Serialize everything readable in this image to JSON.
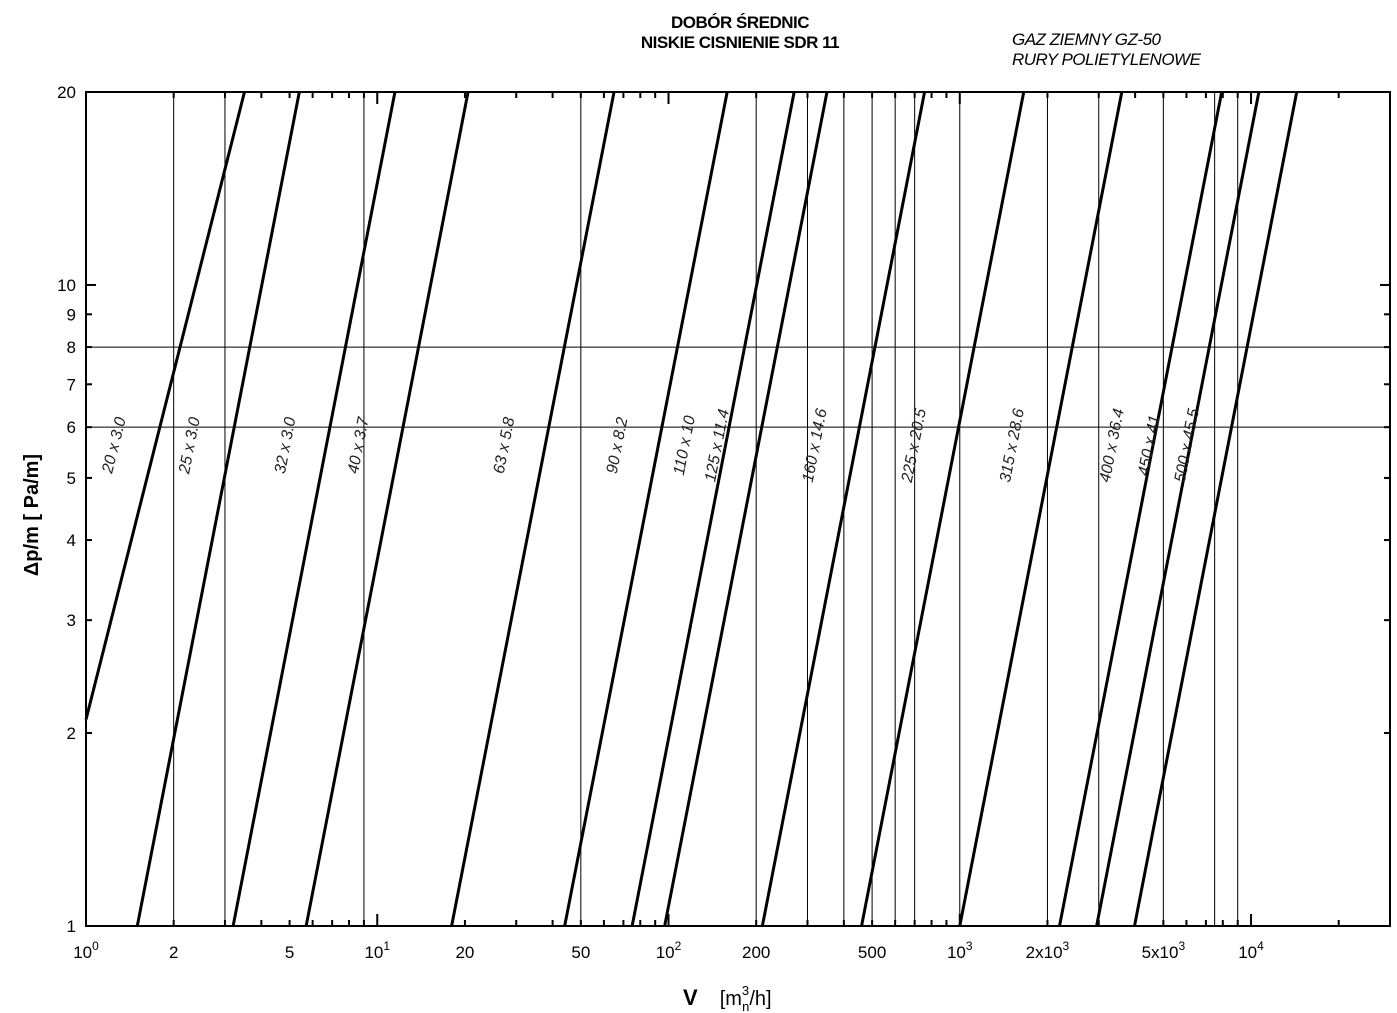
{
  "title_lines": [
    "DOBÓR ŚREDNIC",
    "NISKIE CISNIENIE SDR 11"
  ],
  "subtitle_lines": [
    "GAZ ZIEMNY GZ-50",
    "RURY POLIETYLENOWE"
  ],
  "chart_data": {
    "type": "line",
    "xscale": "log",
    "yscale": "log",
    "xlim": [
      1,
      30000
    ],
    "ylim": [
      1,
      20
    ],
    "xlabel_main": "V",
    "xlabel_unit": "[m",
    "xlabel_sup": "3",
    "xlabel_sub": "n",
    "xlabel_end": "/h]",
    "ylabel": "Δp/m   [ Pa/m]",
    "x_tick_labels": [
      {
        "v": 1,
        "base": "10",
        "exp": "0"
      },
      {
        "v": 2,
        "base": "2",
        "exp": ""
      },
      {
        "v": 5,
        "base": "5",
        "exp": ""
      },
      {
        "v": 10,
        "base": "10",
        "exp": "1"
      },
      {
        "v": 20,
        "base": "20",
        "exp": ""
      },
      {
        "v": 50,
        "base": "50",
        "exp": ""
      },
      {
        "v": 100,
        "base": "10",
        "exp": "2"
      },
      {
        "v": 200,
        "base": "200",
        "exp": ""
      },
      {
        "v": 500,
        "base": "500",
        "exp": ""
      },
      {
        "v": 1000,
        "base": "10",
        "exp": "3"
      },
      {
        "v": 2000,
        "base": "2x10",
        "exp": "3"
      },
      {
        "v": 5000,
        "base": "5x10",
        "exp": "3"
      },
      {
        "v": 10000,
        "base": "10",
        "exp": "4"
      }
    ],
    "y_tick_labels": [
      {
        "v": 1,
        "t": "1"
      },
      {
        "v": 2,
        "t": "2"
      },
      {
        "v": 3,
        "t": "3"
      },
      {
        "v": 4,
        "t": "4"
      },
      {
        "v": 5,
        "t": "5"
      },
      {
        "v": 6,
        "t": "6"
      },
      {
        "v": 7,
        "t": "7"
      },
      {
        "v": 8,
        "t": "8"
      },
      {
        "v": 9,
        "t": "9"
      },
      {
        "v": 10,
        "t": "10"
      },
      {
        "v": 20,
        "t": "20"
      }
    ],
    "vertical_gridlines": [
      2,
      3,
      9,
      50,
      200,
      300,
      400,
      500,
      600,
      700,
      1000,
      2000,
      3000,
      5000,
      7500,
      9000
    ],
    "horizontal_gridlines": [
      6,
      8
    ],
    "series": [
      {
        "name": "20  x 3.0",
        "points": [
          [
            1,
            2.1
          ],
          [
            3.5,
            20
          ]
        ]
      },
      {
        "name": "25 x 3.0",
        "points": [
          [
            1.5,
            1
          ],
          [
            5.4,
            20
          ]
        ]
      },
      {
        "name": "32  x 3.0",
        "points": [
          [
            3.2,
            1
          ],
          [
            11.5,
            20
          ]
        ]
      },
      {
        "name": "40 x 3.7",
        "points": [
          [
            5.7,
            1
          ],
          [
            20.5,
            20
          ]
        ]
      },
      {
        "name": "63 x 5.8",
        "points": [
          [
            18,
            1
          ],
          [
            65,
            20
          ]
        ]
      },
      {
        "name": "90 x 8.2",
        "points": [
          [
            44,
            1
          ],
          [
            159,
            20
          ]
        ]
      },
      {
        "name": "110  x 10",
        "points": [
          [
            75,
            1
          ],
          [
            270,
            20
          ]
        ]
      },
      {
        "name": "125 x 11.4",
        "points": [
          [
            97,
            1
          ],
          [
            350,
            20
          ]
        ]
      },
      {
        "name": "160 x 14.6",
        "points": [
          [
            210,
            1
          ],
          [
            757,
            20
          ]
        ]
      },
      {
        "name": "225 x 20.5",
        "points": [
          [
            460,
            1
          ],
          [
            1658,
            20
          ]
        ]
      },
      {
        "name": "315 x 28.6",
        "points": [
          [
            1000,
            1
          ],
          [
            3600,
            20
          ]
        ]
      },
      {
        "name": "400 x 36.4",
        "points": [
          [
            2200,
            1
          ],
          [
            7930,
            20
          ]
        ]
      },
      {
        "name": "450  x 41",
        "points": [
          [
            2950,
            1
          ],
          [
            10640,
            20
          ]
        ]
      },
      {
        "name": "500 x 45.5",
        "points": [
          [
            3980,
            1
          ],
          [
            14350,
            20
          ]
        ]
      }
    ]
  }
}
